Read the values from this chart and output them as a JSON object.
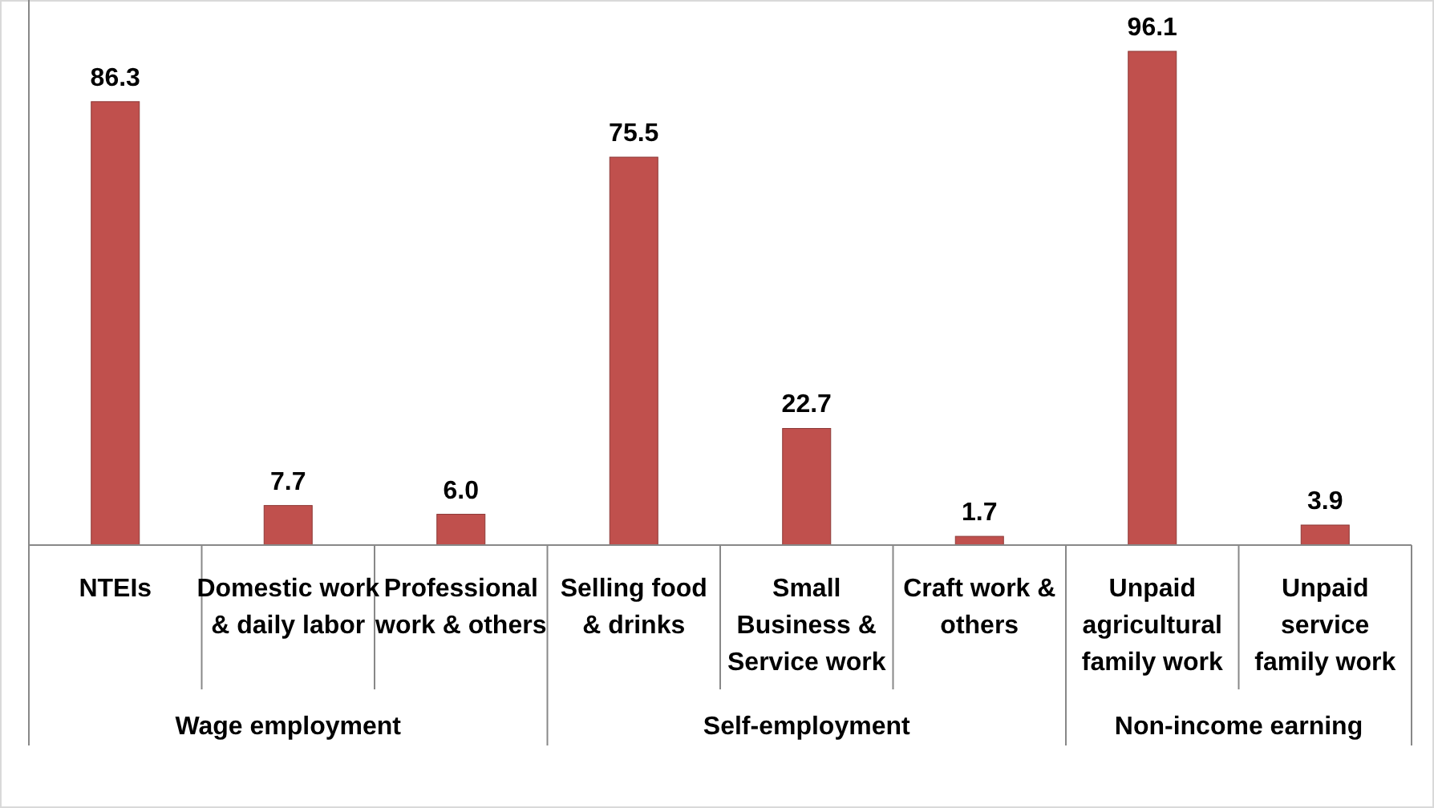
{
  "chart_data": {
    "type": "bar",
    "categories": [
      "NTEIs",
      "Domestic work & daily labor",
      "Professional work & others",
      "Selling food & drinks",
      "Small Business & Service work",
      "Craft work & others",
      "Unpaid agricultural family work",
      "Unpaid service family work"
    ],
    "values": [
      86.3,
      7.7,
      6.0,
      75.5,
      22.7,
      1.7,
      96.1,
      3.9
    ],
    "value_labels": [
      "86.3",
      "7.7",
      "6.0",
      "75.5",
      "22.7",
      "1.7",
      "96.1",
      "3.9"
    ],
    "color": "#c0504d",
    "annotations": [
      "Wage employment",
      "Self-employment",
      "Non-income earning"
    ]
  }
}
